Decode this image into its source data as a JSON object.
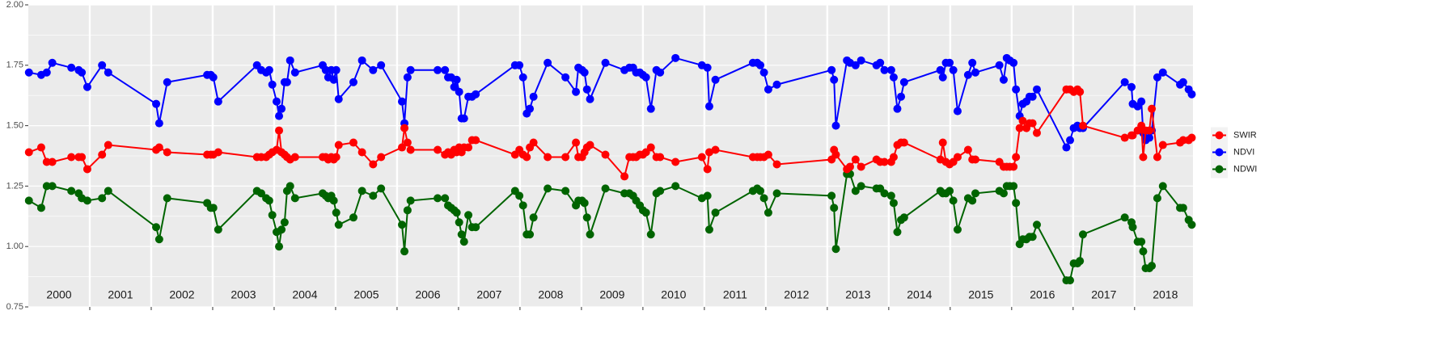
{
  "chart_data": {
    "type": "line",
    "x": [
      2000.01,
      2000.21,
      2000.3,
      2000.39,
      2000.7,
      2000.82,
      2000.87,
      2000.96,
      2001.2,
      2001.3,
      2002.08,
      2002.13,
      2002.26,
      2002.91,
      2002.97,
      2003.01,
      2003.09,
      2003.72,
      2003.79,
      2003.87,
      2003.92,
      2003.97,
      2004.04,
      2004.08,
      2004.12,
      2004.17,
      2004.21,
      2004.26,
      2004.34,
      2004.79,
      2004.84,
      2004.88,
      2004.93,
      2004.97,
      2005.01,
      2005.05,
      2005.29,
      2005.43,
      2005.61,
      2005.74,
      2006.08,
      2006.12,
      2006.17,
      2006.22,
      2006.66,
      2006.78,
      2006.83,
      2006.88,
      2006.93,
      2006.97,
      2007.01,
      2007.05,
      2007.09,
      2007.16,
      2007.22,
      2007.28,
      2007.92,
      2007.99,
      2008.05,
      2008.11,
      2008.16,
      2008.22,
      2008.45,
      2008.74,
      2008.91,
      2008.95,
      2009.01,
      2009.05,
      2009.09,
      2009.14,
      2009.39,
      2009.7,
      2009.78,
      2009.84,
      2009.89,
      2009.95,
      2010.0,
      2010.05,
      2010.13,
      2010.22,
      2010.28,
      2010.53,
      2010.96,
      2011.05,
      2011.08,
      2011.18,
      2011.79,
      2011.86,
      2011.91,
      2011.97,
      2012.04,
      2012.18,
      2013.07,
      2013.11,
      2013.14,
      2013.32,
      2013.37,
      2013.46,
      2013.55,
      2013.8,
      2013.86,
      2013.93,
      2014.04,
      2014.08,
      2014.14,
      2014.2,
      2014.25,
      2014.84,
      2014.88,
      2014.93,
      2014.99,
      2015.05,
      2015.12,
      2015.29,
      2015.36,
      2015.41,
      2015.8,
      2015.87,
      2015.92,
      2015.97,
      2016.03,
      2016.07,
      2016.13,
      2016.18,
      2016.24,
      2016.29,
      2016.34,
      2016.41,
      2016.89,
      2016.95,
      2017.01,
      2017.07,
      2017.11,
      2017.16,
      2017.84,
      2017.95,
      2017.97,
      2018.05,
      2018.11,
      2018.14,
      2018.18,
      2018.24,
      2018.28,
      2018.37,
      2018.46,
      2018.74,
      2018.79,
      2018.88,
      2018.93
    ],
    "series": [
      {
        "name": "SWIR",
        "color": "#ff0000",
        "values": [
          1.39,
          1.41,
          1.35,
          1.35,
          1.37,
          1.37,
          1.37,
          1.32,
          1.38,
          1.42,
          1.4,
          1.41,
          1.39,
          1.38,
          1.38,
          1.38,
          1.39,
          1.37,
          1.37,
          1.37,
          1.38,
          1.39,
          1.4,
          1.48,
          1.39,
          1.38,
          1.37,
          1.36,
          1.37,
          1.37,
          1.37,
          1.36,
          1.37,
          1.36,
          1.37,
          1.42,
          1.43,
          1.39,
          1.34,
          1.37,
          1.41,
          1.49,
          1.43,
          1.4,
          1.4,
          1.38,
          1.39,
          1.38,
          1.4,
          1.39,
          1.41,
          1.39,
          1.41,
          1.41,
          1.44,
          1.44,
          1.38,
          1.4,
          1.38,
          1.37,
          1.41,
          1.43,
          1.37,
          1.37,
          1.43,
          1.37,
          1.37,
          1.39,
          1.41,
          1.42,
          1.38,
          1.29,
          1.37,
          1.37,
          1.37,
          1.38,
          1.38,
          1.39,
          1.41,
          1.37,
          1.37,
          1.35,
          1.37,
          1.32,
          1.39,
          1.4,
          1.37,
          1.37,
          1.37,
          1.37,
          1.38,
          1.34,
          1.36,
          1.4,
          1.38,
          1.32,
          1.33,
          1.36,
          1.33,
          1.36,
          1.35,
          1.35,
          1.35,
          1.37,
          1.42,
          1.43,
          1.43,
          1.36,
          1.43,
          1.35,
          1.34,
          1.35,
          1.37,
          1.4,
          1.36,
          1.36,
          1.35,
          1.33,
          1.33,
          1.33,
          1.33,
          1.37,
          1.49,
          1.52,
          1.49,
          1.51,
          1.51,
          1.47,
          1.65,
          1.65,
          1.64,
          1.65,
          1.64,
          1.5,
          1.45,
          1.46,
          1.46,
          1.48,
          1.5,
          1.37,
          1.48,
          1.48,
          1.57,
          1.37,
          1.42,
          1.43,
          1.44,
          1.44,
          1.45
        ]
      },
      {
        "name": "NDVI",
        "color": "#0000ff",
        "values": [
          1.72,
          1.71,
          1.72,
          1.76,
          1.74,
          1.73,
          1.72,
          1.66,
          1.75,
          1.72,
          1.59,
          1.51,
          1.68,
          1.71,
          1.71,
          1.7,
          1.6,
          1.75,
          1.73,
          1.72,
          1.73,
          1.67,
          1.6,
          1.54,
          1.57,
          1.68,
          1.68,
          1.77,
          1.72,
          1.75,
          1.73,
          1.7,
          1.73,
          1.69,
          1.73,
          1.61,
          1.68,
          1.77,
          1.73,
          1.75,
          1.6,
          1.51,
          1.7,
          1.73,
          1.73,
          1.73,
          1.7,
          1.7,
          1.66,
          1.69,
          1.64,
          1.53,
          1.53,
          1.62,
          1.62,
          1.63,
          1.75,
          1.75,
          1.7,
          1.55,
          1.57,
          1.62,
          1.76,
          1.7,
          1.64,
          1.74,
          1.73,
          1.72,
          1.65,
          1.61,
          1.76,
          1.73,
          1.74,
          1.74,
          1.72,
          1.72,
          1.71,
          1.7,
          1.57,
          1.73,
          1.72,
          1.78,
          1.75,
          1.74,
          1.58,
          1.69,
          1.76,
          1.76,
          1.75,
          1.72,
          1.65,
          1.67,
          1.73,
          1.69,
          1.5,
          1.77,
          1.76,
          1.75,
          1.77,
          1.75,
          1.76,
          1.73,
          1.73,
          1.7,
          1.57,
          1.62,
          1.68,
          1.73,
          1.7,
          1.76,
          1.76,
          1.73,
          1.56,
          1.71,
          1.76,
          1.72,
          1.75,
          1.69,
          1.78,
          1.77,
          1.76,
          1.65,
          1.54,
          1.59,
          1.6,
          1.62,
          1.62,
          1.65,
          1.41,
          1.44,
          1.49,
          1.5,
          1.49,
          1.49,
          1.68,
          1.66,
          1.59,
          1.58,
          1.6,
          1.47,
          1.44,
          1.45,
          1.48,
          1.7,
          1.72,
          1.67,
          1.68,
          1.65,
          1.63
        ]
      },
      {
        "name": "NDWI",
        "color": "#006400",
        "values": [
          1.19,
          1.16,
          1.25,
          1.25,
          1.23,
          1.22,
          1.2,
          1.19,
          1.2,
          1.23,
          1.08,
          1.03,
          1.2,
          1.18,
          1.16,
          1.16,
          1.07,
          1.23,
          1.22,
          1.2,
          1.19,
          1.13,
          1.06,
          1.0,
          1.07,
          1.1,
          1.23,
          1.25,
          1.2,
          1.22,
          1.21,
          1.2,
          1.21,
          1.19,
          1.14,
          1.09,
          1.12,
          1.23,
          1.21,
          1.24,
          1.09,
          0.98,
          1.15,
          1.19,
          1.2,
          1.2,
          1.17,
          1.16,
          1.15,
          1.14,
          1.1,
          1.05,
          1.02,
          1.13,
          1.08,
          1.08,
          1.23,
          1.21,
          1.17,
          1.05,
          1.05,
          1.12,
          1.24,
          1.23,
          1.17,
          1.19,
          1.19,
          1.18,
          1.12,
          1.05,
          1.24,
          1.22,
          1.22,
          1.21,
          1.19,
          1.17,
          1.15,
          1.14,
          1.05,
          1.22,
          1.23,
          1.25,
          1.2,
          1.21,
          1.07,
          1.14,
          1.23,
          1.24,
          1.23,
          1.2,
          1.14,
          1.22,
          1.21,
          1.16,
          0.99,
          1.3,
          1.3,
          1.23,
          1.25,
          1.24,
          1.24,
          1.22,
          1.21,
          1.18,
          1.06,
          1.11,
          1.12,
          1.23,
          1.22,
          1.22,
          1.23,
          1.19,
          1.07,
          1.2,
          1.19,
          1.22,
          1.23,
          1.22,
          1.25,
          1.25,
          1.25,
          1.18,
          1.01,
          1.03,
          1.03,
          1.04,
          1.04,
          1.09,
          0.86,
          0.86,
          0.93,
          0.93,
          0.94,
          1.05,
          1.12,
          1.1,
          1.08,
          1.02,
          1.02,
          0.98,
          0.91,
          0.91,
          0.92,
          1.2,
          1.25,
          1.16,
          1.16,
          1.11,
          1.09
        ]
      }
    ],
    "xlim": [
      2000,
      2018.95
    ],
    "xticks": [
      {
        "value": 2000.5,
        "label": "2000"
      },
      {
        "value": 2001.5,
        "label": "2001"
      },
      {
        "value": 2002.5,
        "label": "2002"
      },
      {
        "value": 2003.5,
        "label": "2003"
      },
      {
        "value": 2004.5,
        "label": "2004"
      },
      {
        "value": 2005.5,
        "label": "2005"
      },
      {
        "value": 2006.5,
        "label": "2006"
      },
      {
        "value": 2007.5,
        "label": "2007"
      },
      {
        "value": 2008.5,
        "label": "2008"
      },
      {
        "value": 2009.5,
        "label": "2009"
      },
      {
        "value": 2010.5,
        "label": "2010"
      },
      {
        "value": 2011.5,
        "label": "2011"
      },
      {
        "value": 2012.5,
        "label": "2012"
      },
      {
        "value": 2013.5,
        "label": "2013"
      },
      {
        "value": 2014.5,
        "label": "2014"
      },
      {
        "value": 2015.5,
        "label": "2015"
      },
      {
        "value": 2016.5,
        "label": "2016"
      },
      {
        "value": 2017.5,
        "label": "2017"
      },
      {
        "value": 2018.5,
        "label": "2018"
      }
    ],
    "ylim": [
      0.75,
      2.0
    ],
    "yticks": [
      0.75,
      {
        "value": 1,
        "label": "1.00"
      },
      1.25,
      {
        "value": 1.5,
        "label": "1.50"
      },
      1.75,
      {
        "value": 2,
        "label": "2.00"
      }
    ],
    "grid": true,
    "legend": "right"
  }
}
